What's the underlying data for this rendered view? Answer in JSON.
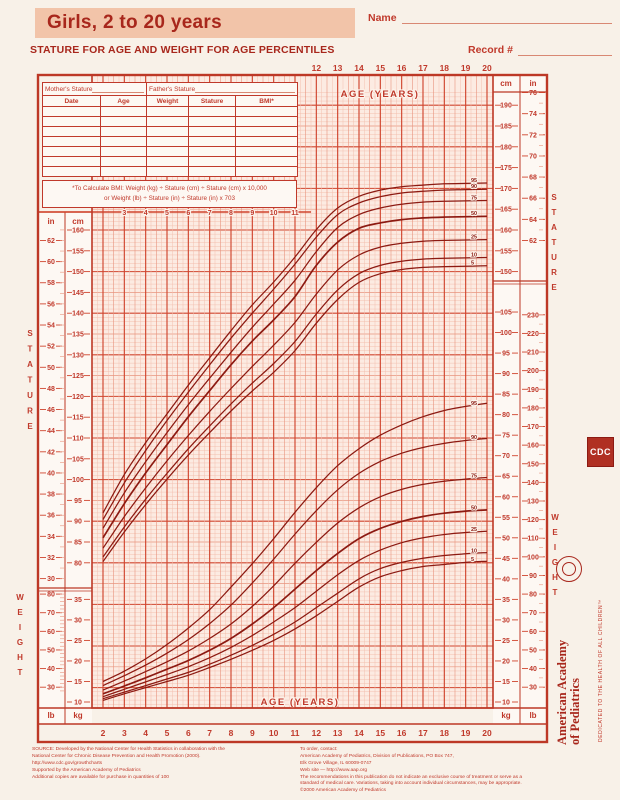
{
  "page": {
    "bg": "#f8f1e8",
    "accent_red": "#c0392b",
    "dark_red": "#8c1a12",
    "title_box_bg": "#f2c4a9"
  },
  "header": {
    "title": "Girls, 2 to 20 years",
    "subtitle": "STATURE FOR AGE AND WEIGHT FOR AGE PERCENTILES",
    "name_label": "Name",
    "record_label": "Record #"
  },
  "form_table": {
    "mother_label": "Mother's Stature",
    "father_label": "Father's Stature",
    "columns": [
      "Date",
      "Age",
      "Weight",
      "Stature",
      "BMI*"
    ],
    "empty_rows": 7,
    "bmi_note_line1": "*To Calculate BMI: Weight (kg) ÷ Stature (cm) ÷ Stature (cm) x 10,000",
    "bmi_note_line2": "or Weight (lb) ÷ Stature (in) ÷ Stature (in) x 703"
  },
  "side_labels": {
    "stature": "STATURE",
    "weight": "WEIGHT",
    "cm": "cm",
    "in": "in",
    "kg": "kg",
    "lb": "lb"
  },
  "chart_data": {
    "type": "line",
    "title": "Girls, 2 to 20 years: Stature-for-age and Weight-for-age percentiles",
    "age_label": "AGE (YEARS)",
    "ages": [
      2,
      3,
      4,
      5,
      6,
      7,
      8,
      9,
      10,
      11,
      12,
      13,
      14,
      15,
      16,
      17,
      18,
      19,
      20
    ],
    "age_axis": {
      "top_ticks": [
        12,
        13,
        14,
        15,
        16,
        17,
        18,
        19,
        20
      ],
      "inner_ticks": [
        3,
        4,
        5,
        6,
        7,
        8,
        9,
        10,
        11
      ],
      "bottom_ticks": [
        2,
        3,
        4,
        5,
        6,
        7,
        8,
        9,
        10,
        11,
        12,
        13,
        14,
        15,
        16,
        17,
        18,
        19,
        20
      ]
    },
    "stature": {
      "ylim_cm": [
        80,
        190
      ],
      "cm_ticks_left": [
        160,
        155,
        150,
        145,
        140,
        135,
        130,
        125,
        120,
        115,
        110,
        105,
        100,
        95,
        90,
        85,
        80
      ],
      "in_ticks_left": [
        62,
        60,
        58,
        56,
        54,
        52,
        50,
        48,
        46,
        44,
        42,
        40,
        38,
        36,
        34,
        32,
        30
      ],
      "cm_ticks_right": [
        190,
        185,
        180,
        175,
        170,
        165,
        160,
        155,
        150
      ],
      "in_ticks_right": [
        76,
        74,
        72,
        70,
        68,
        66,
        64,
        62
      ],
      "percentiles": [
        {
          "p": "5",
          "values": [
            80.3,
            87.4,
            94.0,
            100.1,
            105.9,
            111.3,
            116.5,
            121.3,
            125.8,
            131.0,
            137.6,
            143.3,
            147.4,
            149.5,
            150.5,
            151.0,
            151.2,
            151.3,
            151.4
          ]
        },
        {
          "p": "10",
          "values": [
            81.4,
            88.6,
            95.3,
            101.5,
            107.4,
            112.9,
            118.2,
            123.2,
            127.9,
            133.2,
            139.8,
            145.6,
            149.5,
            151.5,
            152.5,
            153.0,
            153.2,
            153.3,
            153.4
          ]
        },
        {
          "p": "25",
          "values": [
            83.5,
            91.1,
            98.0,
            104.5,
            110.6,
            116.4,
            121.9,
            127.2,
            132.3,
            137.8,
            144.6,
            150.4,
            154.0,
            155.9,
            156.8,
            157.3,
            157.5,
            157.6,
            157.7
          ]
        },
        {
          "p": "50",
          "values": [
            86.0,
            94.2,
            101.6,
            108.4,
            115.1,
            121.4,
            127.6,
            133.3,
            138.4,
            144.0,
            151.5,
            157.1,
            160.4,
            161.7,
            162.5,
            162.9,
            163.1,
            163.2,
            163.3
          ]
        },
        {
          "p": "75",
          "values": [
            88.3,
            96.8,
            104.3,
            111.3,
            118.0,
            124.4,
            130.6,
            136.6,
            142.2,
            147.9,
            154.8,
            160.6,
            163.7,
            165.3,
            166.2,
            166.7,
            166.9,
            167.0,
            167.1
          ]
        },
        {
          "p": "90",
          "values": [
            90.4,
            99.2,
            107.0,
            114.2,
            121.0,
            127.6,
            134.0,
            140.0,
            145.8,
            151.8,
            158.3,
            163.7,
            166.5,
            168.0,
            168.9,
            169.3,
            169.6,
            169.7,
            169.8
          ]
        },
        {
          "p": "95",
          "values": [
            92.0,
            101.2,
            108.9,
            115.8,
            122.7,
            129.3,
            135.8,
            142.0,
            147.5,
            153.5,
            160.1,
            165.3,
            168.1,
            169.6,
            170.4,
            170.8,
            171.1,
            171.2,
            171.3
          ]
        }
      ]
    },
    "weight": {
      "ylim_kg": [
        10,
        105
      ],
      "kg_ticks_right": [
        105,
        100,
        95,
        90,
        85,
        80,
        75,
        70,
        65,
        60,
        55,
        50,
        45,
        40,
        35,
        30,
        25,
        20,
        15,
        10
      ],
      "lb_ticks_right": [
        230,
        220,
        210,
        200,
        190,
        180,
        170,
        160,
        150,
        140,
        130,
        120,
        110,
        100,
        90,
        80,
        70,
        60,
        50,
        40,
        30
      ],
      "kg_ticks_left": [
        35,
        30,
        25,
        20,
        15,
        10
      ],
      "lb_ticks_left": [
        80,
        70,
        60,
        50,
        40,
        30
      ],
      "percentiles": [
        {
          "p": "5",
          "values": [
            10.4,
            12.0,
            13.5,
            15.0,
            16.5,
            18.4,
            20.4,
            22.6,
            25.0,
            27.8,
            31.0,
            34.5,
            38.0,
            40.5,
            42.0,
            43.0,
            43.5,
            44.0,
            44.3
          ]
        },
        {
          "p": "10",
          "values": [
            10.8,
            12.4,
            14.0,
            15.6,
            17.2,
            19.2,
            21.4,
            23.8,
            26.5,
            29.5,
            33.0,
            36.5,
            40.0,
            42.5,
            44.0,
            45.0,
            45.7,
            46.1,
            46.4
          ]
        },
        {
          "p": "25",
          "values": [
            11.3,
            13.1,
            14.9,
            16.7,
            18.6,
            20.8,
            23.3,
            26.2,
            29.5,
            33.0,
            37.0,
            41.0,
            44.5,
            47.0,
            48.8,
            50.0,
            50.8,
            51.3,
            51.6
          ]
        },
        {
          "p": "50",
          "values": [
            12.0,
            13.9,
            15.9,
            18.0,
            20.1,
            22.6,
            25.5,
            29.0,
            33.0,
            37.5,
            42.0,
            46.2,
            49.8,
            52.3,
            54.0,
            55.2,
            56.0,
            56.5,
            56.8
          ]
        },
        {
          "p": "75",
          "values": [
            12.9,
            15.1,
            17.4,
            19.8,
            22.4,
            25.5,
            29.0,
            33.3,
            38.3,
            43.8,
            48.9,
            53.6,
            57.3,
            60.0,
            61.8,
            63.0,
            63.8,
            64.3,
            64.7
          ]
        },
        {
          "p": "90",
          "values": [
            14.0,
            16.4,
            19.0,
            21.9,
            25.2,
            29.1,
            33.6,
            39.0,
            44.8,
            50.9,
            56.6,
            61.7,
            65.7,
            68.6,
            70.6,
            72.0,
            73.0,
            73.7,
            74.2
          ]
        },
        {
          "p": "95",
          "values": [
            15.0,
            17.5,
            20.5,
            24.0,
            28.0,
            32.5,
            38.0,
            43.7,
            49.8,
            56.2,
            62.2,
            67.6,
            71.7,
            75.0,
            77.5,
            79.5,
            81.0,
            82.0,
            82.8
          ]
        }
      ]
    },
    "percentile_curve_labels": [
      "95",
      "90",
      "75",
      "50",
      "25",
      "10",
      "5"
    ]
  },
  "footer": {
    "left_lines": [
      "SOURCE: Developed by the National Center for Health Statistics in collaboration with the",
      "National Center for Chronic Disease Prevention and Health Promotion (2000).",
      "http://www.cdc.gov/growthcharts",
      "Supported by the American Academy of Pediatrics",
      "Additional copies are available for purchase in quantities of 100"
    ],
    "right_lines": [
      "To order, contact:",
      "American Academy of Pediatrics, Division of Publications, PO Box 747,",
      "Elk Grove Village, IL 60009-0747",
      "Web site — http://www.aap.org",
      "The recommendations in this publication do not indicate an exclusive course of treatment or serve as a",
      "standard of medical care. Variations, taking into account individual circumstances, may be appropriate.",
      "©2000 American Academy of Pediatrics"
    ]
  },
  "margin": {
    "cdc_logo_text": "CDC",
    "aap_name_line1": "American Academy",
    "aap_name_line2": "of Pediatrics",
    "dedicated": "DEDICATED TO THE HEALTH OF ALL CHILDREN™"
  }
}
